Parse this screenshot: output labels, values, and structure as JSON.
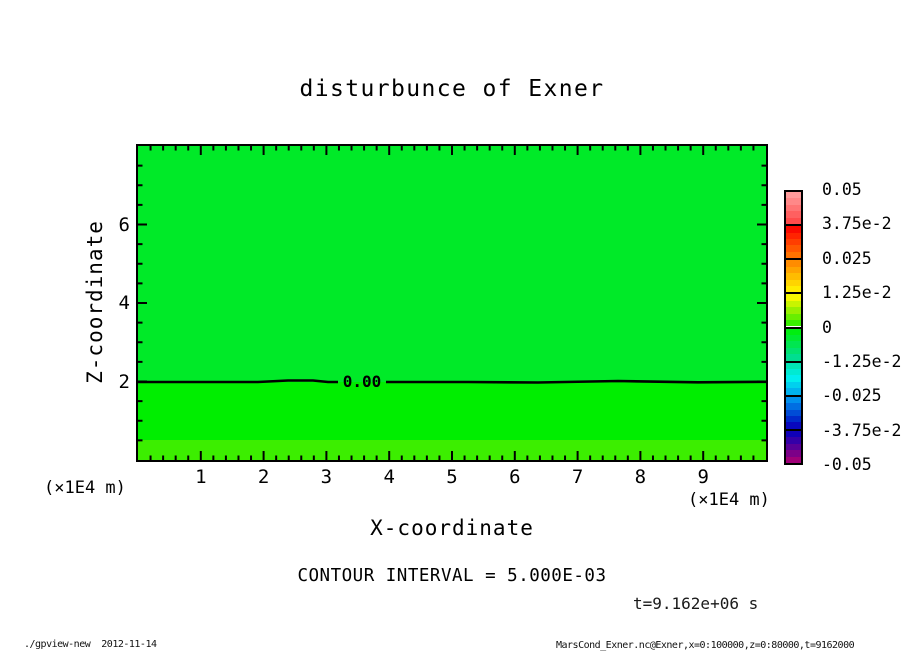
{
  "title": "disturbunce of Exner",
  "axes": {
    "x_label": "X-coordinate",
    "y_label": "Z-coordinate",
    "x_unit_left": "(×1E4 m)",
    "x_unit_right": "(×1E4 m)"
  },
  "annotations": {
    "contour_interval": "CONTOUR INTERVAL = 5.000E-03",
    "time": "t=9.162e+06 s"
  },
  "footer": {
    "left": "./gpview-new  2012-11-14",
    "right": "MarsCond_Exner.nc@Exner,x=0:100000,z=0:80000,t=9162000"
  },
  "colorbar": {
    "labels": [
      "0.05",
      "3.75e-2",
      "0.025",
      "1.25e-2",
      "0",
      "-1.25e-2",
      "-0.025",
      "-3.75e-2",
      "-0.05"
    ],
    "box_colors": [
      [
        "#ff9c9c",
        "#ff8888",
        "#ff7474",
        "#ff6060",
        "#ff4c4c"
      ],
      [
        "#fa0a00",
        "#ff2400",
        "#ff3e00",
        "#ff5800",
        "#ff7200"
      ],
      [
        "#ff8c00",
        "#ffa400",
        "#ffbc00",
        "#ffd400",
        "#ffec00"
      ],
      [
        "#f6f800",
        "#c8f400",
        "#98f000",
        "#68ee00",
        "#38ee00"
      ],
      [
        "#00ee10",
        "#00ea30",
        "#00e650",
        "#00e270",
        "#00de90"
      ],
      [
        "#00e4b4",
        "#00ead2",
        "#00eeee",
        "#00d0ee",
        "#00b2ee"
      ],
      [
        "#0090ee",
        "#006ee2",
        "#004cd6",
        "#002aca",
        "#0808be"
      ],
      [
        "#1000b8",
        "#3400a8",
        "#580098",
        "#7c0088",
        "#a00078"
      ]
    ]
  },
  "chart_data": {
    "type": "heatmap",
    "title": "disturbunce of Exner",
    "xlabel": "X-coordinate",
    "ylabel": "Z-coordinate",
    "x_unit": "×1E4 m",
    "z_unit": "×1E4 m",
    "x_range": [
      0,
      10
    ],
    "z_range": [
      0,
      8
    ],
    "x_major_ticks": [
      1,
      2,
      3,
      4,
      5,
      6,
      7,
      8,
      9
    ],
    "x_minor_step": 0.2,
    "z_major_ticks": [
      2,
      4,
      6
    ],
    "z_minor_step": 0.5,
    "contour_interval": 0.005,
    "colorbar_levels": [
      0.05,
      0.0375,
      0.025,
      0.0125,
      0,
      -0.0125,
      -0.025,
      -0.0375,
      -0.05
    ],
    "contour_lines": [
      {
        "level": 0.0,
        "label": "0.00",
        "z_position": 2.0
      }
    ],
    "field_bands": [
      {
        "z_from": 2.0,
        "z_to": 8.0,
        "value_band": "0 to -2.5e-3",
        "color": "#00ea28"
      },
      {
        "z_from": 0.5,
        "z_to": 2.0,
        "value_band": "0 to +2.5e-3",
        "color": "#00ee00"
      },
      {
        "z_from": 0.0,
        "z_to": 0.5,
        "value_band": "+2.5e-3 to +5.0e-3",
        "color": "#3cee00"
      }
    ],
    "time": "t=9.162e+06 s",
    "grid": false,
    "legend_position": "right-colorbar"
  }
}
